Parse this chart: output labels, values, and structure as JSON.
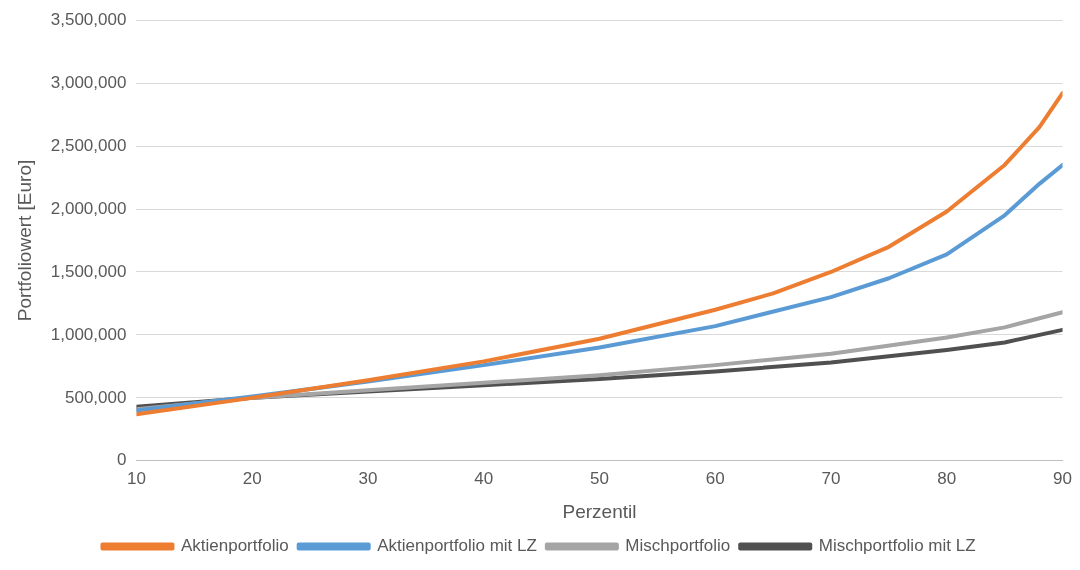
{
  "chart_data": {
    "type": "line",
    "xlabel": "Perzentil",
    "ylabel": "Portfoliowert [Euro]",
    "xlim": [
      10,
      90
    ],
    "xticks": [
      10,
      20,
      30,
      40,
      50,
      60,
      70,
      80,
      90
    ],
    "ylim": [
      0,
      3500000
    ],
    "yticks": [
      0,
      {
        "value": 500000,
        "label": "500,000"
      },
      {
        "value": 1000000,
        "label": "1,000,000"
      },
      {
        "value": 1500000,
        "label": "1,500,000"
      },
      {
        "value": 2000000,
        "label": "2,000,000"
      },
      {
        "value": 2500000,
        "label": "2,500,000"
      },
      {
        "value": 3000000,
        "label": "3,000,000"
      },
      {
        "value": 3500000,
        "label": "3,500,000"
      }
    ],
    "grid": "y",
    "legend": "bottom",
    "marker": "none",
    "line_style": "solid",
    "series": [
      {
        "name": "Aktienportfolio",
        "color": "#ed7d31",
        "x": [
          10,
          20,
          30,
          40,
          50,
          60,
          65,
          70,
          75,
          80,
          85,
          88,
          90
        ],
        "values": [
          370000,
          500000,
          640000,
          790000,
          970000,
          1200000,
          1330000,
          1500000,
          1700000,
          1980000,
          2350000,
          2650000,
          2920000
        ]
      },
      {
        "name": "Aktienportfolio mit LZ",
        "color": "#5b9bd5",
        "x": [
          10,
          20,
          30,
          40,
          50,
          60,
          70,
          75,
          80,
          85,
          88,
          90
        ],
        "values": [
          400000,
          510000,
          630000,
          760000,
          900000,
          1070000,
          1300000,
          1450000,
          1640000,
          1950000,
          2200000,
          2350000
        ]
      },
      {
        "name": "Mischportfolio",
        "color": "#a5a5a5",
        "x": [
          10,
          20,
          30,
          40,
          50,
          60,
          70,
          80,
          85,
          90
        ],
        "values": [
          410000,
          500000,
          560000,
          620000,
          680000,
          760000,
          850000,
          980000,
          1060000,
          1180000
        ]
      },
      {
        "name": "Mischportfolio mit LZ",
        "color": "#505050",
        "x": [
          10,
          20,
          30,
          40,
          50,
          60,
          70,
          80,
          85,
          90
        ],
        "values": [
          430000,
          500000,
          550000,
          600000,
          650000,
          710000,
          780000,
          880000,
          940000,
          1040000
        ]
      }
    ]
  }
}
